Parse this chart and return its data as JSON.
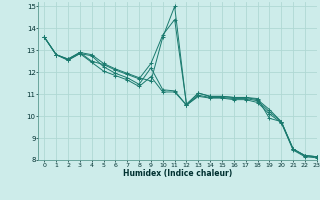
{
  "xlabel": "Humidex (Indice chaleur)",
  "xlim": [
    -0.5,
    23
  ],
  "ylim": [
    8,
    15.2
  ],
  "yticks": [
    8,
    9,
    10,
    11,
    12,
    13,
    14,
    15
  ],
  "xticks": [
    0,
    1,
    2,
    3,
    4,
    5,
    6,
    7,
    8,
    9,
    10,
    11,
    12,
    13,
    14,
    15,
    16,
    17,
    18,
    19,
    20,
    21,
    22,
    23
  ],
  "bg_color": "#cdecea",
  "grid_color": "#b0d8d4",
  "line_color": "#1a7a6e",
  "lines": [
    {
      "x": [
        0,
        1,
        2,
        3,
        4,
        5,
        6,
        7,
        8,
        9,
        10,
        11,
        12,
        13,
        14,
        15,
        16,
        17,
        18,
        19,
        20,
        21,
        22,
        23
      ],
      "y": [
        13.6,
        12.8,
        12.6,
        12.9,
        12.8,
        12.4,
        12.15,
        11.95,
        11.75,
        11.6,
        13.6,
        15.0,
        10.5,
        11.05,
        10.9,
        10.9,
        10.85,
        10.85,
        10.8,
        9.9,
        9.75,
        8.5,
        8.2,
        8.15
      ]
    },
    {
      "x": [
        0,
        1,
        2,
        3,
        4,
        5,
        6,
        7,
        8,
        9,
        10,
        11,
        12,
        13,
        14,
        15,
        16,
        17,
        18,
        19,
        20,
        21,
        22,
        23
      ],
      "y": [
        13.6,
        12.8,
        12.6,
        12.9,
        12.5,
        12.35,
        12.1,
        11.9,
        11.7,
        12.4,
        13.7,
        14.4,
        10.55,
        11.05,
        10.9,
        10.9,
        10.85,
        10.85,
        10.75,
        10.3,
        9.75,
        8.5,
        8.2,
        8.15
      ]
    },
    {
      "x": [
        0,
        1,
        2,
        3,
        4,
        5,
        6,
        7,
        8,
        9,
        10,
        11,
        12,
        13,
        14,
        15,
        16,
        17,
        18,
        19,
        20,
        21,
        22,
        23
      ],
      "y": [
        13.6,
        12.8,
        12.55,
        12.85,
        12.75,
        12.25,
        11.95,
        11.75,
        11.45,
        12.2,
        11.2,
        11.15,
        10.5,
        10.95,
        10.85,
        10.85,
        10.8,
        10.8,
        10.7,
        10.2,
        9.75,
        8.5,
        8.2,
        8.15
      ]
    },
    {
      "x": [
        0,
        1,
        2,
        3,
        4,
        5,
        6,
        7,
        8,
        9,
        10,
        11,
        12,
        13,
        14,
        15,
        16,
        17,
        18,
        19,
        20,
        21,
        22,
        23
      ],
      "y": [
        13.6,
        12.8,
        12.55,
        12.85,
        12.45,
        12.05,
        11.85,
        11.65,
        11.35,
        11.8,
        11.1,
        11.1,
        10.5,
        10.9,
        10.82,
        10.82,
        10.75,
        10.75,
        10.62,
        10.1,
        9.7,
        8.45,
        8.15,
        8.1
      ]
    }
  ]
}
